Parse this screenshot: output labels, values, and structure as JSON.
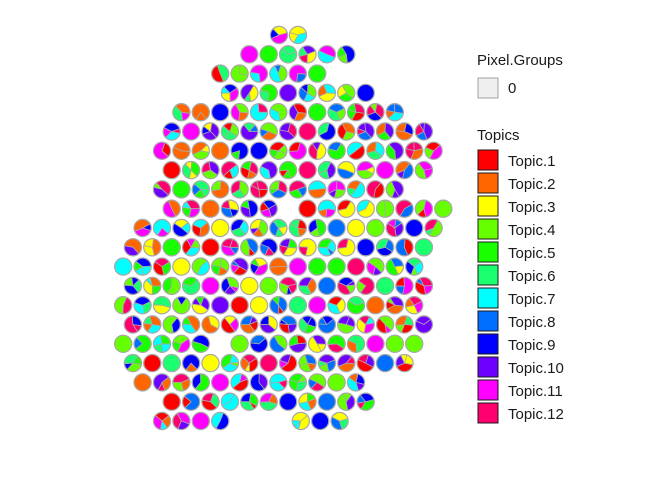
{
  "chart_data": {
    "type": "scatter-pie",
    "pixel_groups_legend": {
      "title": "Pixel.Groups",
      "items": [
        {
          "label": "0",
          "color": "#efefef"
        }
      ]
    },
    "topics_legend": {
      "title": "Topics",
      "items": [
        {
          "label": "Topic.1",
          "color": "#FF0000"
        },
        {
          "label": "Topic.2",
          "color": "#FF6600"
        },
        {
          "label": "Topic.3",
          "color": "#FFFF00"
        },
        {
          "label": "Topic.4",
          "color": "#66FF00"
        },
        {
          "label": "Topic.5",
          "color": "#19FF00"
        },
        {
          "label": "Topic.6",
          "color": "#19FF6E"
        },
        {
          "label": "Topic.7",
          "color": "#00FFFF"
        },
        {
          "label": "Topic.8",
          "color": "#006EFF"
        },
        {
          "label": "Topic.9",
          "color": "#0000FF"
        },
        {
          "label": "Topic.10",
          "color": "#6E00FF"
        },
        {
          "label": "Topic.11",
          "color": "#FF00FF"
        },
        {
          "label": "Topic.12",
          "color": "#FF006E"
        }
      ]
    },
    "spot_layout": {
      "rows": 21,
      "cols_min": 0,
      "cols_max": 16,
      "row_spans": [
        [
          7,
          8
        ],
        [
          4,
          9
        ],
        [
          3,
          8
        ],
        [
          3,
          10
        ],
        [
          1,
          12
        ],
        [
          0,
          13
        ],
        [
          0,
          14
        ],
        [
          0,
          13
        ],
        [
          0,
          12
        ],
        [
          0,
          14
        ],
        [
          -1,
          14
        ],
        [
          -2,
          13
        ],
        [
          -2,
          13
        ],
        [
          -2,
          13
        ],
        [
          -2,
          13
        ],
        [
          -2,
          13
        ],
        [
          -2,
          13
        ],
        [
          -2,
          12
        ],
        [
          -1,
          10
        ],
        [
          0,
          10
        ],
        [
          0,
          3
        ]
      ],
      "extra_spots_row20": [
        7,
        8,
        9
      ]
    }
  }
}
